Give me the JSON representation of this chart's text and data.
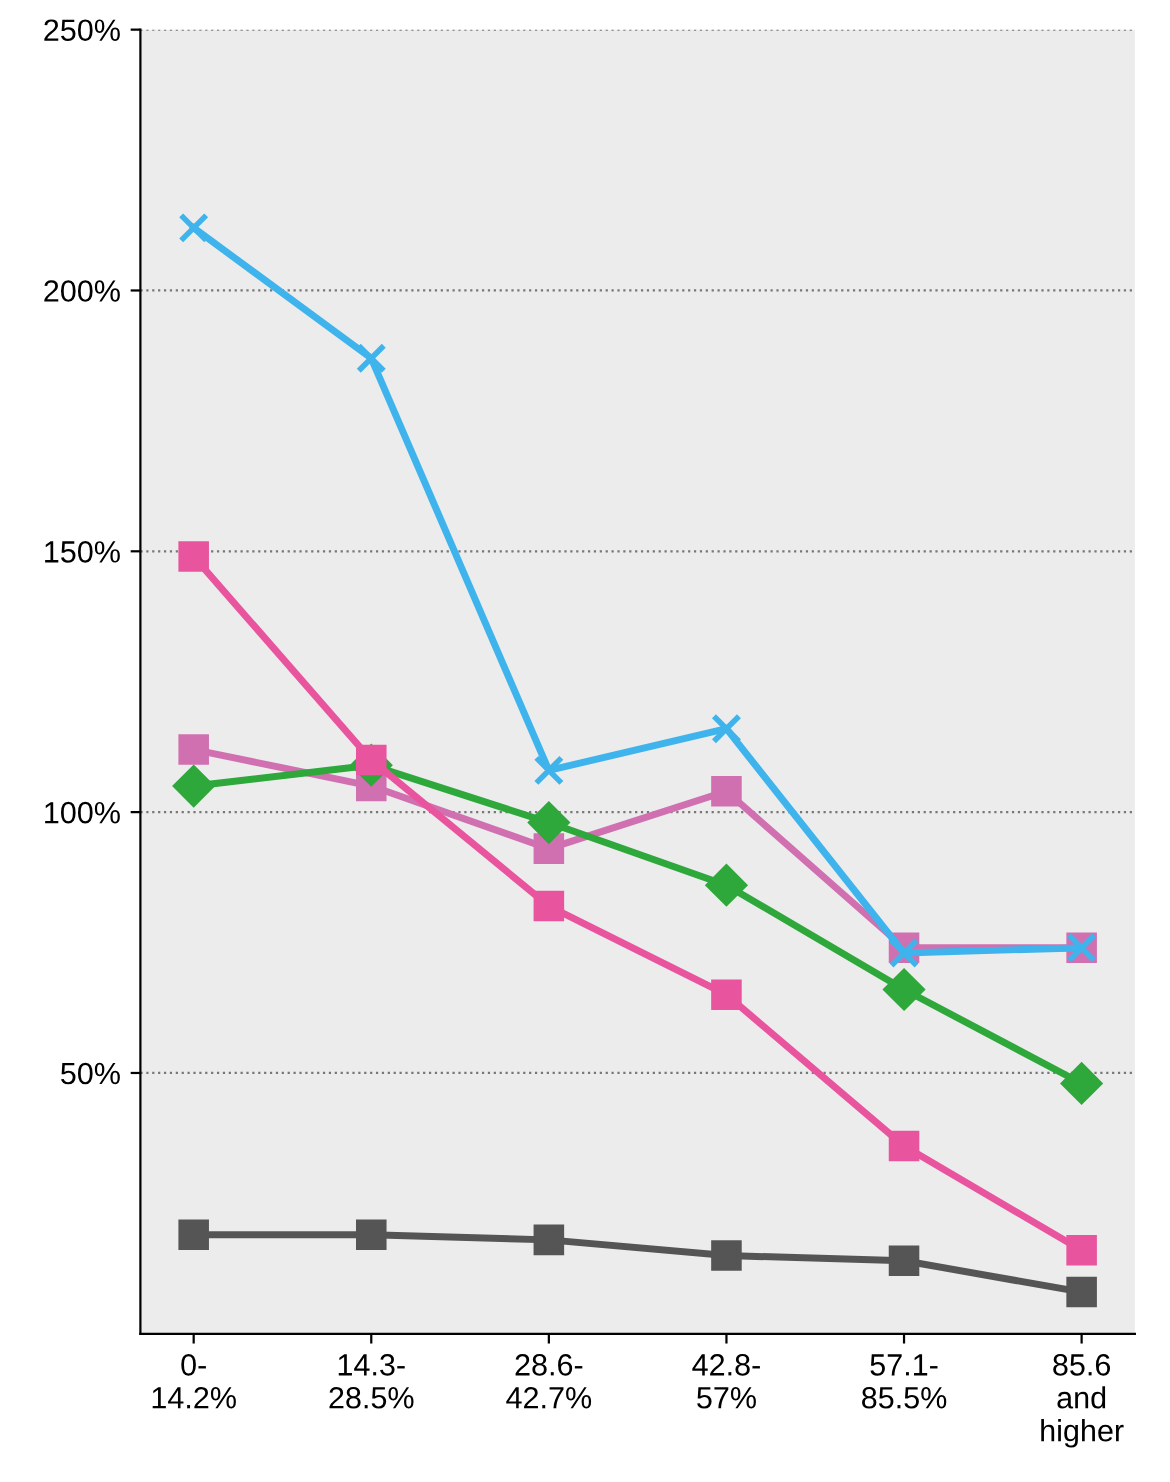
{
  "chart_data": {
    "type": "line",
    "categories": [
      "0-\n14.2%",
      "14.3-\n28.5%",
      "28.6-\n42.7%",
      "42.8-\n57%",
      "57.1-\n85.5%",
      "85.6\nand\nhigher"
    ],
    "series": [
      {
        "color": "#3fb4ec",
        "marker": "cross",
        "values": [
          212,
          187,
          108,
          116,
          73,
          74
        ]
      },
      {
        "color": "#e8559e",
        "marker": "square",
        "values": [
          149,
          110,
          82,
          65,
          36,
          16
        ]
      },
      {
        "color": "#2ea83a",
        "marker": "diamond",
        "values": [
          105,
          109,
          98,
          86,
          66,
          48
        ]
      },
      {
        "color": "#d070b0",
        "marker": "square",
        "values": [
          112,
          105,
          93,
          104,
          74,
          74
        ]
      },
      {
        "color": "#555555",
        "marker": "square",
        "values": [
          19,
          19,
          18,
          15,
          14,
          8
        ]
      }
    ],
    "ylim": [
      0,
      250
    ],
    "yticks": [
      {
        "value": 50,
        "label": "50%"
      },
      {
        "value": 100,
        "label": "100%"
      },
      {
        "value": 150,
        "label": "150%"
      },
      {
        "value": 200,
        "label": "200%"
      },
      {
        "value": 250,
        "label": "250%"
      }
    ],
    "grid": "y"
  }
}
